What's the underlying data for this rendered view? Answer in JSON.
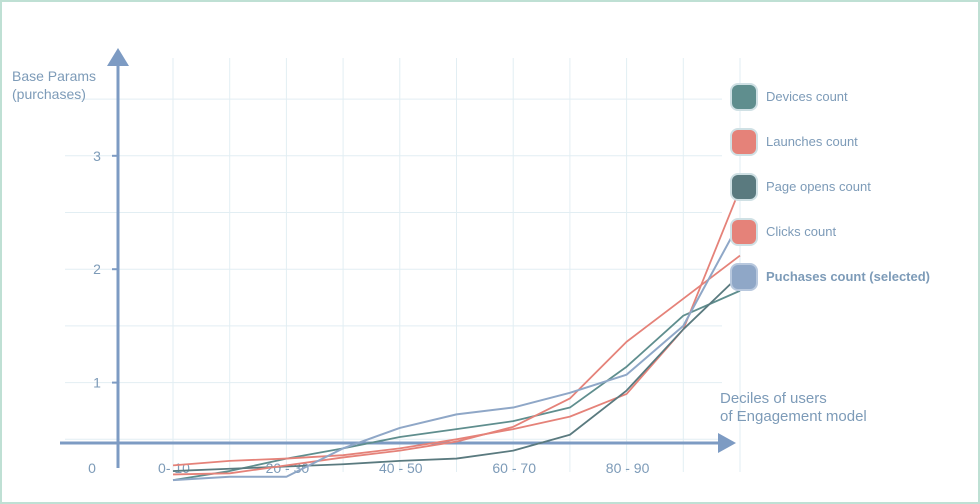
{
  "chart_data": {
    "type": "line",
    "ylabel": "Base Params (purchases)",
    "ylabel_lines": [
      "Base Params",
      "(purchases)"
    ],
    "xlabel": "Deciles of users of Engagement model",
    "xlabel_lines": [
      "Deciles of users",
      "of Engagement model"
    ],
    "x_tick_labels": [
      "0- 10",
      "20 - 30",
      "40 - 50",
      "60 - 70",
      "80 - 90"
    ],
    "y_tick_labels": [
      "0",
      "1",
      "2",
      "3"
    ],
    "ylim": [
      0,
      3.7
    ],
    "grid": true,
    "legend_position": "right",
    "x": [
      0,
      10,
      20,
      30,
      40,
      50,
      60,
      70,
      80,
      90,
      100
    ],
    "series": [
      {
        "name": "Devices count",
        "color": "#5f8e8e",
        "values": [
          0.14,
          0.22,
          0.33,
          0.42,
          0.52,
          0.59,
          0.66,
          0.78,
          1.14,
          1.59,
          1.81
        ]
      },
      {
        "name": "Launches count",
        "color": "#e58279",
        "values": [
          0.27,
          0.31,
          0.33,
          0.36,
          0.42,
          0.5,
          0.59,
          0.7,
          0.9,
          1.47,
          2.71
        ]
      },
      {
        "name": "Page opens count",
        "color": "#5a7a7f",
        "values": [
          0.22,
          0.24,
          0.26,
          0.28,
          0.31,
          0.33,
          0.4,
          0.54,
          0.93,
          1.47,
          1.95
        ]
      },
      {
        "name": "Clicks count",
        "color": "#e58279",
        "values": [
          0.19,
          0.2,
          0.27,
          0.34,
          0.4,
          0.48,
          0.61,
          0.86,
          1.36,
          1.74,
          2.12
        ]
      },
      {
        "name": "Puchases count (selected)",
        "color": "#8fa7c7",
        "selected": true,
        "values": [
          0.14,
          0.17,
          0.17,
          0.42,
          0.6,
          0.72,
          0.78,
          0.91,
          1.07,
          1.5,
          2.42
        ]
      }
    ]
  }
}
